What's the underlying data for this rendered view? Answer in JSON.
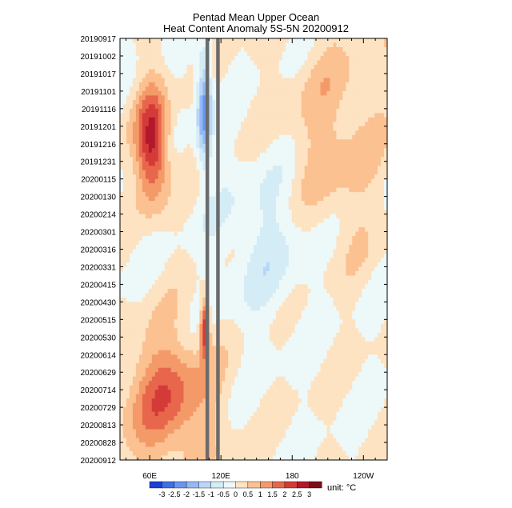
{
  "chart_data": {
    "type": "heatmap",
    "title_lines": [
      "Pentad Mean Upper Ocean",
      "Heat Content Anomaly 5S-5N 20200912"
    ],
    "x_ticks": [
      {
        "label": "60E",
        "lon": 60
      },
      {
        "label": "120E",
        "lon": 120
      },
      {
        "label": "180",
        "lon": 180
      },
      {
        "label": "120W",
        "lon": 240
      }
    ],
    "xlim": [
      35,
      260
    ],
    "y_ticks": [
      "20190917",
      "20191002",
      "20191017",
      "20191101",
      "20191116",
      "20191201",
      "20191216",
      "20191231",
      "20200115",
      "20200130",
      "20200214",
      "20200301",
      "20200316",
      "20200331",
      "20200415",
      "20200430",
      "20200515",
      "20200530",
      "20200614",
      "20200629",
      "20200714",
      "20200729",
      "20200813",
      "20200828",
      "20200912"
    ],
    "y_direction": "time increases downward",
    "land_bands_lon": [
      [
        107,
        110
      ],
      [
        116,
        119
      ]
    ],
    "colorbar": {
      "levels": [
        "-3",
        "-2.5",
        "-2",
        "-1.5",
        "-1",
        "-0.5",
        "0",
        "0.5",
        "1",
        "1.5",
        "2",
        "2.5",
        "3"
      ],
      "colors": [
        "#1c3fd6",
        "#3f6fe4",
        "#6a95ef",
        "#93b9f5",
        "#b8d6f8",
        "#d4ecf6",
        "#edf8f9",
        "#fde3c2",
        "#fbc191",
        "#f49a69",
        "#e8664c",
        "#d43b38",
        "#b2182b",
        "#7f0d1c"
      ],
      "unit_label": "unit: °C"
    },
    "anomaly_features": [
      {
        "lon": [
          50,
          75
        ],
        "time_index": [
          3,
          9
        ],
        "value": 2.8
      },
      {
        "lon": [
          40,
          110
        ],
        "time_index": [
          17,
          24
        ],
        "value": 1.8
      },
      {
        "lon": [
          100,
          112
        ],
        "time_index": [
          1,
          7
        ],
        "value": -2.3
      },
      {
        "lon": [
          120,
          200
        ],
        "time_index": [
          7,
          16
        ],
        "value": -0.7
      },
      {
        "lon": [
          175,
          255
        ],
        "time_index": [
          0,
          12
        ],
        "value": 0.8
      },
      {
        "lon": [
          103,
          110
        ],
        "time_index": [
          15,
          18
        ],
        "value": 2.6
      }
    ]
  }
}
